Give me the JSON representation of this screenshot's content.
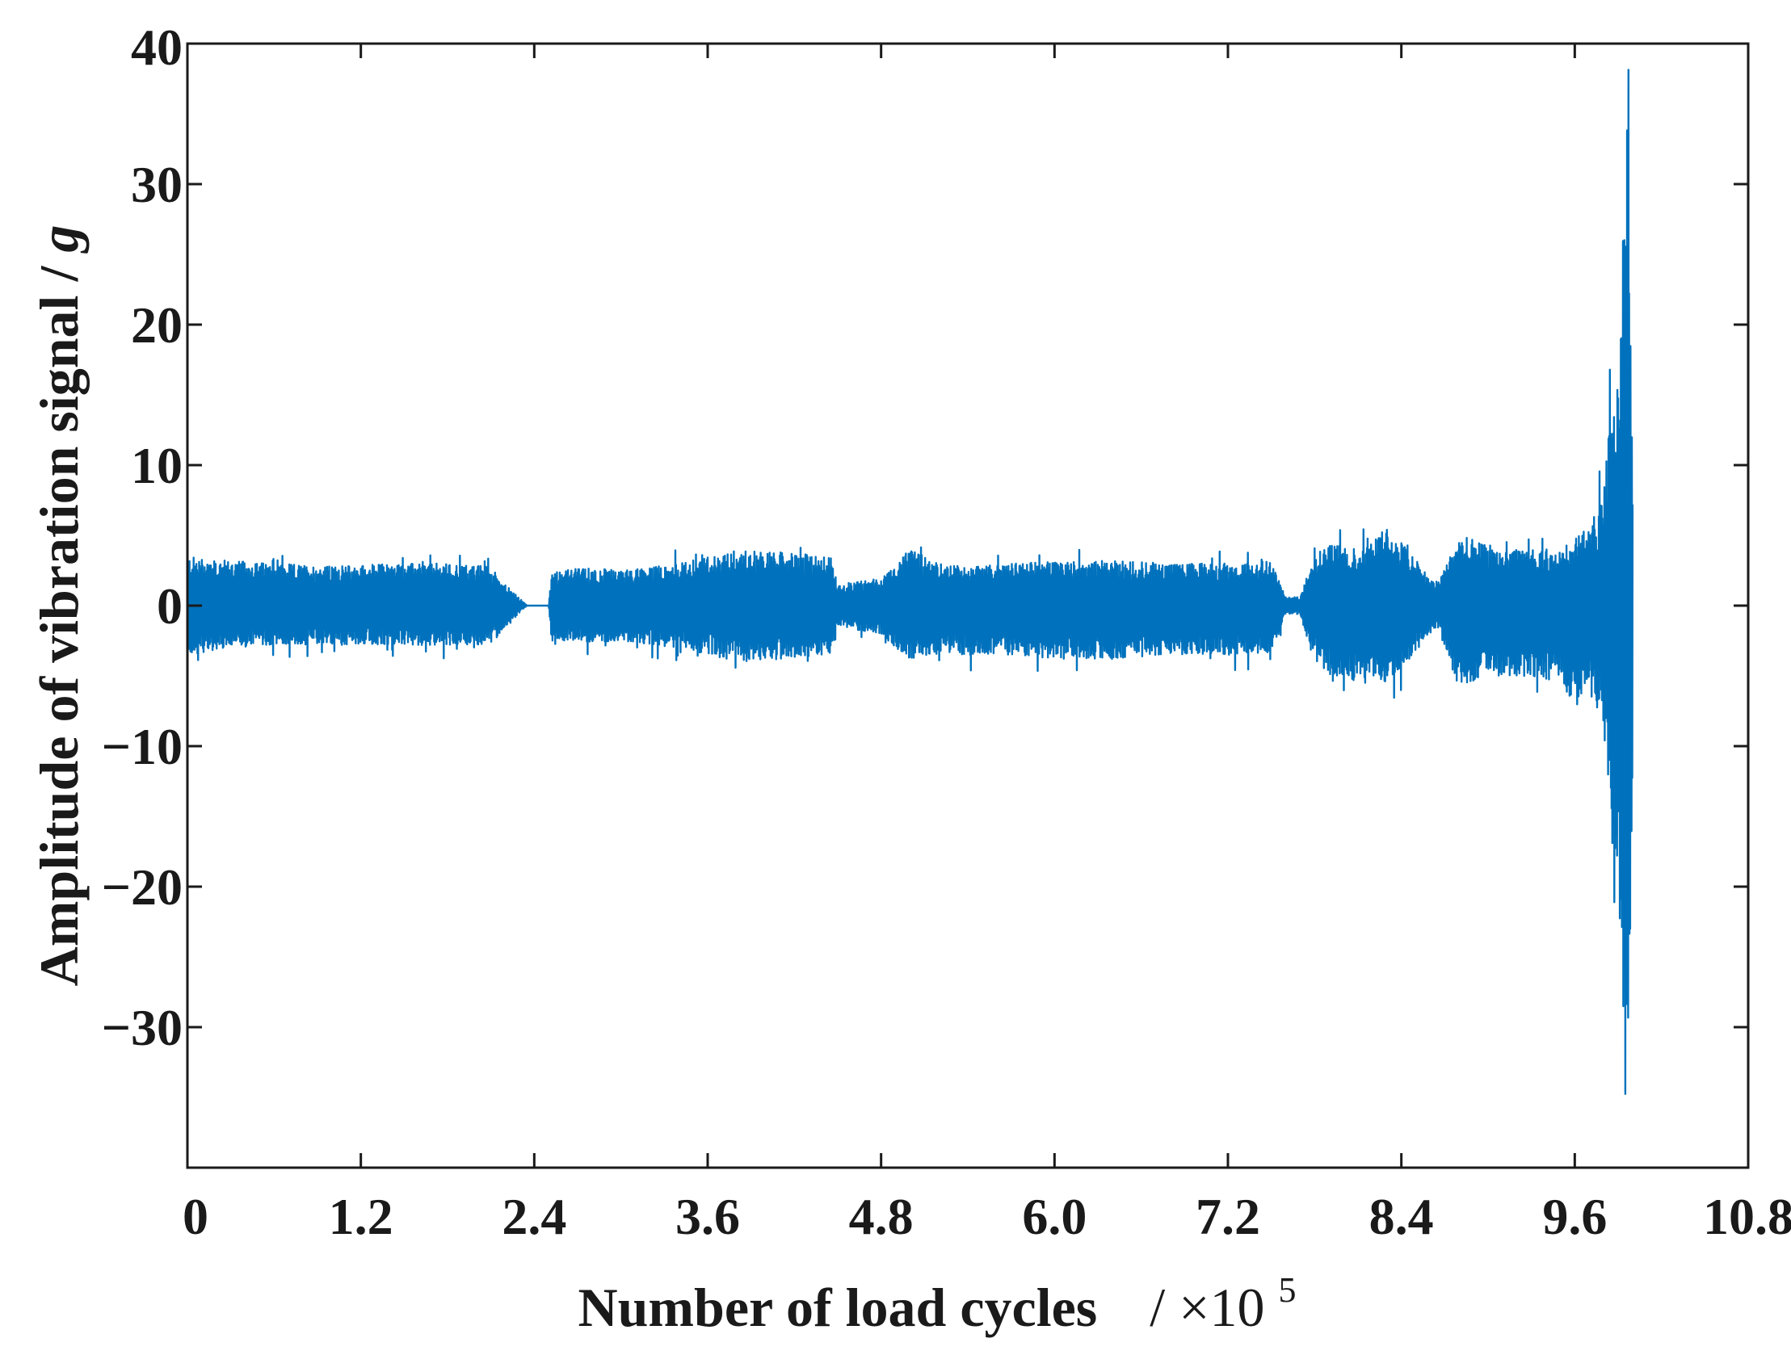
{
  "chart_data": {
    "type": "line",
    "xlabel": "Number of load cycles",
    "xlabel_unit": "/ ×10",
    "xlabel_exponent": "5",
    "ylabel": "Amplitude of vibration signal /",
    "ylabel_unit": "g",
    "xlim": [
      0,
      10.8
    ],
    "ylim": [
      -40,
      40
    ],
    "x_ticks": [
      0,
      1.2,
      2.4,
      3.6,
      4.8,
      6.0,
      7.2,
      8.4,
      9.6,
      10.8
    ],
    "x_tick_labels": [
      "0",
      "1.2",
      "2.4",
      "3.6",
      "4.8",
      "6.0",
      "7.2",
      "8.4",
      "9.6",
      "10.8"
    ],
    "y_ticks": [
      -30,
      -20,
      -10,
      0,
      10,
      20,
      30,
      40
    ],
    "y_tick_labels": [
      "−30",
      "−20",
      "−10",
      "0",
      "10",
      "20",
      "30",
      "40"
    ],
    "grid": false,
    "line_color": "#0072BD",
    "series": [
      {
        "x": [
          0.0,
          0.3,
          0.6,
          1.0,
          1.4,
          1.8,
          2.1,
          2.2,
          2.3,
          2.35,
          2.5,
          2.52,
          2.8,
          3.0,
          3.4,
          3.6,
          3.8,
          4.1,
          4.45,
          4.5,
          4.8,
          5.0,
          5.2,
          5.4,
          5.7,
          6.0,
          6.4,
          6.8,
          7.2,
          7.5,
          7.6,
          7.7,
          7.78,
          7.9,
          8.1,
          8.3,
          8.4,
          8.6,
          8.65,
          8.8,
          8.95,
          9.1,
          9.3,
          9.5,
          9.6,
          9.7,
          9.8,
          9.85,
          9.9,
          9.92,
          9.95,
          9.97,
          9.99,
          10.0
        ],
        "upper": [
          3.5,
          3.2,
          3.0,
          2.8,
          3.0,
          3.0,
          2.8,
          1.5,
          0.5,
          0.0,
          0.0,
          2.5,
          2.7,
          2.5,
          3.0,
          3.5,
          4.0,
          3.8,
          3.5,
          1.5,
          2.0,
          4.0,
          3.0,
          2.8,
          3.0,
          3.2,
          3.2,
          3.0,
          3.0,
          3.2,
          0.6,
          0.6,
          3.5,
          4.5,
          4.0,
          5.5,
          4.5,
          2.0,
          1.5,
          5.0,
          4.5,
          4.0,
          4.0,
          4.0,
          5.0,
          5.5,
          8.0,
          14.0,
          17.0,
          25.0,
          30.0,
          40.0,
          20.0,
          10.0
        ],
        "lower": [
          -3.5,
          -3.0,
          -2.8,
          -2.8,
          -2.8,
          -2.8,
          -2.8,
          -1.5,
          -0.5,
          0.0,
          0.0,
          -2.5,
          -2.6,
          -2.5,
          -3.0,
          -3.5,
          -4.0,
          -3.8,
          -3.5,
          -1.5,
          -2.0,
          -4.0,
          -3.5,
          -3.5,
          -3.5,
          -3.8,
          -3.8,
          -3.5,
          -3.5,
          -3.5,
          -0.6,
          -0.6,
          -3.5,
          -5.0,
          -5.5,
          -5.5,
          -4.5,
          -2.0,
          -1.5,
          -6.0,
          -5.0,
          -5.0,
          -5.0,
          -5.5,
          -7.0,
          -6.0,
          -9.0,
          -14.0,
          -20.0,
          -28.0,
          -36.0,
          -30.0,
          -20.0,
          -10.0
        ]
      }
    ]
  }
}
